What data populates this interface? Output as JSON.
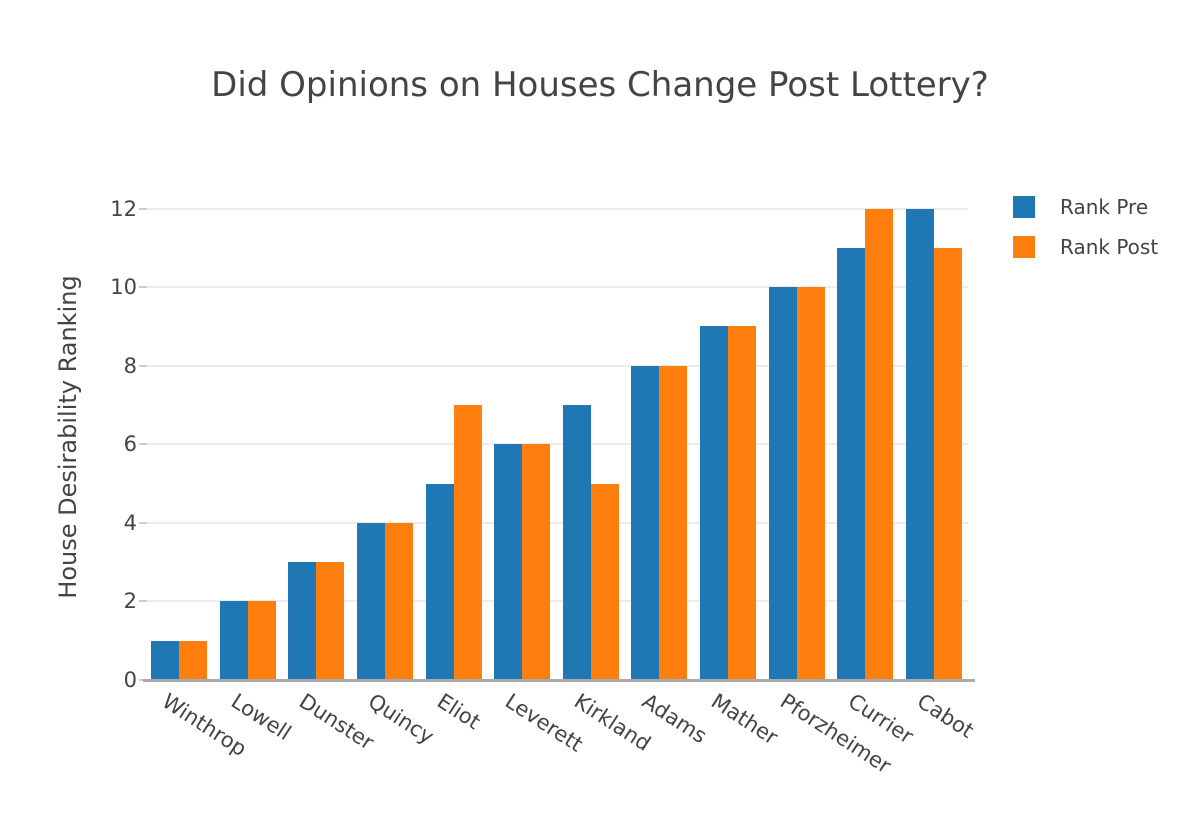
{
  "chart_data": {
    "type": "bar",
    "title": "Did Opinions on Houses Change Post Lottery?",
    "xlabel": "",
    "ylabel": "House Desirability Ranking",
    "categories": [
      "Winthrop",
      "Lowell",
      "Dunster",
      "Quincy",
      "Eliot",
      "Leverett",
      "Kirkland",
      "Adams",
      "Mather",
      "Pforzheimer",
      "Currier",
      "Cabot"
    ],
    "series": [
      {
        "name": "Rank Pre",
        "color": "#1f77b4",
        "values": [
          1,
          2,
          3,
          4,
          5,
          6,
          7,
          8,
          9,
          10,
          11,
          12
        ]
      },
      {
        "name": "Rank Post",
        "color": "#ff7f0e",
        "values": [
          1,
          2,
          3,
          4,
          7,
          6,
          5,
          8,
          9,
          10,
          12,
          11
        ]
      }
    ],
    "yticks": [
      0,
      2,
      4,
      6,
      8,
      10,
      12
    ],
    "ylim": [
      0,
      12.6
    ],
    "grid": true,
    "legend_position": "top-right",
    "colors": {
      "text": "#444444",
      "grid": "#ececec",
      "axis_line": "#ababab",
      "tick_mark": "#cccccc",
      "background": "#ffffff"
    }
  }
}
